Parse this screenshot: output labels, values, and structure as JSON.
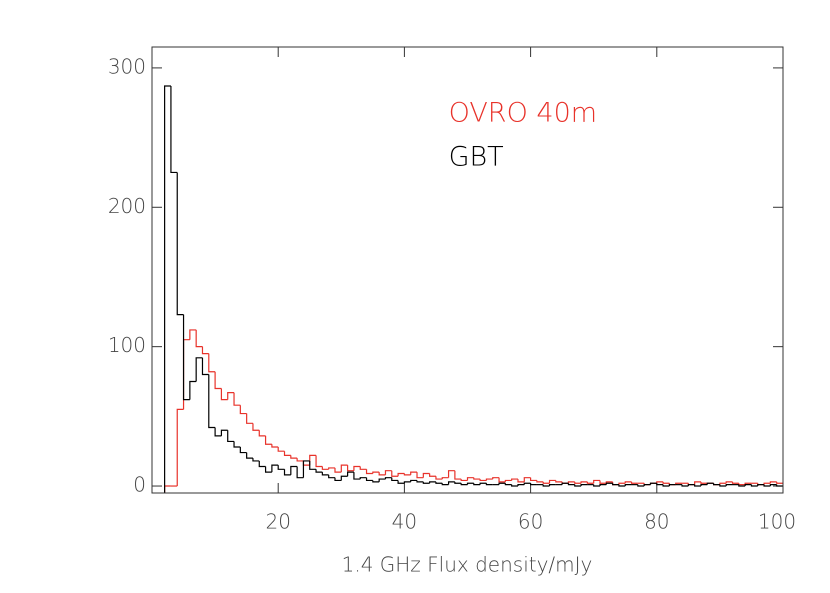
{
  "chart_data": {
    "type": "step-histogram",
    "x_label": "1.4 GHz Flux density/mJy",
    "xlim": [
      0,
      100
    ],
    "xticks": [
      20,
      40,
      60,
      80,
      100
    ],
    "ylim": [
      -5,
      315
    ],
    "yticks": [
      0,
      100,
      200,
      300
    ],
    "legend_loc": "upper right",
    "bins": [
      2,
      3,
      4,
      5,
      6,
      7,
      8,
      9,
      10,
      11,
      12,
      13,
      14,
      15,
      16,
      17,
      18,
      19,
      20,
      21,
      22,
      23,
      24,
      25,
      26,
      27,
      28,
      29,
      30,
      31,
      32,
      33,
      34,
      35,
      36,
      37,
      38,
      39,
      40,
      41,
      42,
      43,
      44,
      45,
      46,
      47,
      48,
      49,
      50,
      51,
      52,
      53,
      54,
      55,
      56,
      57,
      58,
      59,
      60,
      61,
      62,
      63,
      64,
      65,
      66,
      67,
      68,
      69,
      70,
      71,
      72,
      73,
      74,
      75,
      76,
      77,
      78,
      79,
      80,
      81,
      82,
      83,
      84,
      85,
      86,
      87,
      88,
      89,
      90,
      91,
      92,
      93,
      94,
      95,
      96,
      97,
      98,
      99,
      100
    ],
    "series": [
      {
        "name": "OVRO 40m",
        "color": "#e8322a",
        "values": [
          0,
          0,
          55,
          105,
          112,
          100,
          95,
          82,
          70,
          62,
          67,
          58,
          52,
          45,
          40,
          36,
          30,
          28,
          25,
          22,
          20,
          18,
          15,
          22,
          14,
          12,
          13,
          10,
          15,
          11,
          14,
          12,
          9,
          10,
          8,
          11,
          7,
          9,
          8,
          10,
          6,
          9,
          7,
          5,
          6,
          11,
          5,
          4,
          6,
          5,
          4,
          5,
          6,
          3,
          4,
          5,
          3,
          6,
          4,
          3,
          2,
          4,
          3,
          2,
          3,
          2,
          3,
          2,
          4,
          2,
          3,
          1,
          2,
          3,
          2,
          2,
          1,
          2,
          3,
          2,
          1,
          2,
          2,
          1,
          3,
          2,
          2,
          1,
          2,
          3,
          2,
          1,
          2,
          2,
          1,
          2,
          3,
          2
        ]
      },
      {
        "name": "GBT",
        "color": "#000000",
        "values": [
          287,
          225,
          123,
          62,
          75,
          92,
          80,
          42,
          36,
          40,
          32,
          28,
          24,
          20,
          18,
          14,
          10,
          15,
          12,
          8,
          14,
          6,
          18,
          12,
          10,
          8,
          6,
          4,
          7,
          10,
          5,
          6,
          4,
          3,
          5,
          6,
          4,
          2,
          3,
          4,
          3,
          2,
          3,
          2,
          1,
          3,
          2,
          1,
          2,
          1,
          2,
          1,
          1,
          2,
          1,
          0,
          1,
          2,
          1,
          1,
          0,
          1,
          1,
          2,
          1,
          0,
          1,
          1,
          0,
          1,
          2,
          1,
          0,
          1,
          1,
          0,
          1,
          2,
          1,
          0,
          1,
          1,
          0,
          1,
          0,
          1,
          2,
          1,
          0,
          1,
          1,
          0,
          1,
          0,
          1,
          0,
          1,
          0
        ]
      }
    ]
  }
}
